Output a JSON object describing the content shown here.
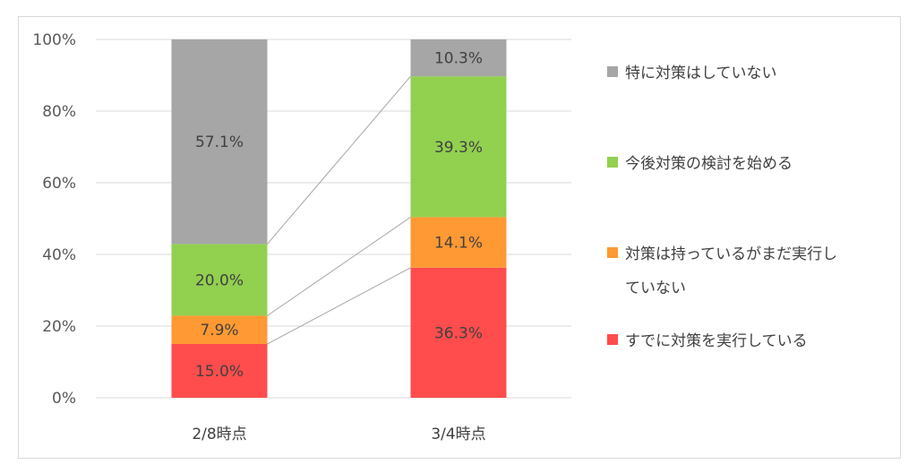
{
  "chart_data": {
    "type": "bar",
    "stacked": true,
    "categories": [
      "2/8時点",
      "3/4時点"
    ],
    "series": [
      {
        "name": "すでに対策を実行している",
        "color": "#ff4d4d",
        "values": [
          15.0,
          36.3
        ],
        "labels": [
          "15.0%",
          "36.3%"
        ]
      },
      {
        "name": "対策は持っているがまだ実行していない",
        "color": "#ff9933",
        "values": [
          7.9,
          14.1
        ],
        "labels": [
          "7.9%",
          "14.1%"
        ]
      },
      {
        "name": "今後対策の検討を始める",
        "color": "#92d050",
        "values": [
          20.0,
          39.3
        ],
        "labels": [
          "20.0%",
          "39.3%"
        ]
      },
      {
        "name": "特に対策はしていない",
        "color": "#a6a6a6",
        "values": [
          57.1,
          10.3
        ],
        "labels": [
          "57.1%",
          "10.3%"
        ]
      }
    ],
    "ylim": [
      0,
      100
    ],
    "yticks": [
      0,
      20,
      40,
      60,
      80,
      100
    ],
    "ytick_labels": [
      "0%",
      "20%",
      "40%",
      "60%",
      "80%",
      "100%"
    ],
    "legend": {
      "placement": "right",
      "items": [
        {
          "lines": [
            "特に対策はしていない"
          ],
          "color": "#a6a6a6"
        },
        {
          "lines": [
            "今後対策の検討を始める"
          ],
          "color": "#92d050"
        },
        {
          "lines": [
            "対策は持っているがまだ実行し",
            "ていない"
          ],
          "color": "#ff9933"
        },
        {
          "lines": [
            "すでに対策を実行している"
          ],
          "color": "#ff4d4d"
        }
      ]
    },
    "grid": true,
    "series_lines": true
  }
}
